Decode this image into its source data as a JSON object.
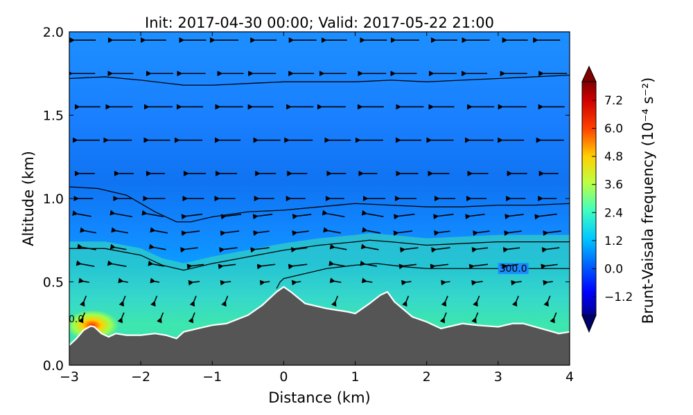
{
  "chart_data": {
    "type": "contourf",
    "title": "Init: 2017-04-30 00:00; Valid: 2017-05-22 21:00",
    "xlabel": "Distance (km)",
    "ylabel": "Altitude (km)",
    "xlim": [
      -3,
      4
    ],
    "ylim": [
      0,
      2
    ],
    "xticks": [
      "−3",
      "−2",
      "−1",
      "0",
      "1",
      "2",
      "3",
      "4"
    ],
    "xtick_values": [
      -3,
      -2,
      -1,
      0,
      1,
      2,
      3,
      4
    ],
    "yticks": [
      "0.0",
      "0.5",
      "1.0",
      "1.5",
      "2.0"
    ],
    "ytick_values": [
      0,
      0.5,
      1.0,
      1.5,
      2.0
    ],
    "colorbar": {
      "label": "Brunt-Vaisala frequency (10⁻⁴ s⁻²)",
      "range": [
        -2.0,
        8.0
      ],
      "ticks": [
        "−1.2",
        "0.0",
        "1.2",
        "2.4",
        "3.6",
        "4.8",
        "6.0",
        "7.2"
      ],
      "tick_values": [
        -1.2,
        0.0,
        1.2,
        2.4,
        3.6,
        4.8,
        6.0,
        7.2
      ],
      "extend": "both"
    },
    "colors": {
      "terrain": "#555555",
      "terrain_outline": "#ffffff",
      "background": "#1a8cff",
      "contour": "#000000"
    },
    "terrain": {
      "x": [
        -3.0,
        -2.9,
        -2.8,
        -2.7,
        -2.65,
        -2.55,
        -2.45,
        -2.35,
        -2.2,
        -2.0,
        -1.8,
        -1.65,
        -1.5,
        -1.4,
        -1.2,
        -1.0,
        -0.8,
        -0.5,
        -0.3,
        -0.1,
        0.0,
        0.1,
        0.3,
        0.6,
        0.9,
        1.0,
        1.2,
        1.35,
        1.45,
        1.55,
        1.8,
        2.0,
        2.2,
        2.5,
        2.7,
        3.0,
        3.2,
        3.35,
        3.6,
        3.85,
        4.0
      ],
      "z": [
        0.12,
        0.16,
        0.21,
        0.235,
        0.23,
        0.19,
        0.17,
        0.19,
        0.18,
        0.18,
        0.19,
        0.18,
        0.16,
        0.2,
        0.22,
        0.24,
        0.25,
        0.3,
        0.36,
        0.44,
        0.47,
        0.44,
        0.37,
        0.34,
        0.32,
        0.31,
        0.37,
        0.42,
        0.44,
        0.38,
        0.29,
        0.26,
        0.22,
        0.25,
        0.24,
        0.23,
        0.25,
        0.25,
        0.22,
        0.19,
        0.2
      ]
    },
    "contours": [
      {
        "label": "",
        "x": [
          -3.0,
          -2.5,
          -2.0,
          -1.6,
          -1.4,
          -1.0,
          -0.5,
          0.0,
          0.5,
          1.0,
          1.5,
          2.0,
          2.5,
          3.0,
          3.5,
          4.0
        ],
        "z": [
          1.72,
          1.73,
          1.71,
          1.69,
          1.68,
          1.68,
          1.69,
          1.7,
          1.7,
          1.7,
          1.71,
          1.7,
          1.71,
          1.72,
          1.73,
          1.74
        ]
      },
      {
        "label": "",
        "x": [
          -3.0,
          -2.6,
          -2.2,
          -1.8,
          -1.5,
          -1.3,
          -1.0,
          -0.5,
          0.0,
          0.5,
          1.0,
          1.5,
          2.0,
          2.5,
          3.0,
          3.5,
          4.0
        ],
        "z": [
          1.07,
          1.06,
          1.02,
          0.92,
          0.86,
          0.86,
          0.89,
          0.92,
          0.93,
          0.95,
          0.97,
          0.96,
          0.95,
          0.95,
          0.96,
          0.96,
          0.97
        ]
      },
      {
        "label": "",
        "x": [
          -3.0,
          -2.5,
          -2.0,
          -1.7,
          -1.4,
          -1.0,
          -0.5,
          0.0,
          0.5,
          1.0,
          1.2,
          1.5,
          2.0,
          2.5,
          3.0,
          3.5,
          4.0
        ],
        "z": [
          0.7,
          0.7,
          0.66,
          0.6,
          0.57,
          0.61,
          0.65,
          0.69,
          0.72,
          0.74,
          0.75,
          0.74,
          0.72,
          0.73,
          0.74,
          0.74,
          0.74
        ]
      },
      {
        "label": "300.0",
        "x": [
          -0.1,
          -0.05,
          0.0,
          0.3,
          0.6,
          1.0,
          1.3,
          1.7,
          2.0,
          2.5,
          3.0,
          3.6,
          4.0
        ],
        "z": [
          0.46,
          0.5,
          0.52,
          0.55,
          0.58,
          0.6,
          0.61,
          0.59,
          0.58,
          0.58,
          0.58,
          0.58,
          0.58
        ]
      }
    ],
    "contour_label_left": "0.0",
    "wind_vectors": {
      "x_columns": [
        -2.75,
        -2.25,
        -1.75,
        -1.25,
        -0.75,
        -0.25,
        0.25,
        0.75,
        1.25,
        1.75,
        2.25,
        2.75,
        3.25,
        3.75
      ],
      "z_rows": [
        0.3,
        0.4,
        0.5,
        0.6,
        0.7,
        0.8,
        0.9,
        1.0,
        1.15,
        1.35,
        1.55,
        1.75,
        1.95
      ]
    }
  }
}
